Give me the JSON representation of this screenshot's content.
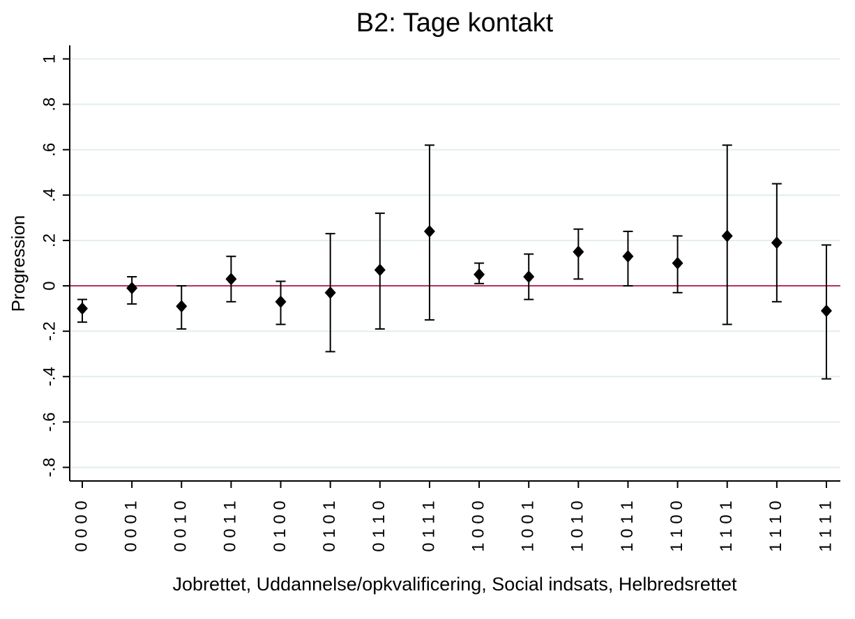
{
  "chart_data": {
    "type": "errorbar",
    "title": "B2: Tage kontakt",
    "ylabel": "Progression",
    "xlabel": "Jobrettet, Uddannelse/opkvalificering, Social indsats, Helbredsrettet",
    "categories": [
      "0 0 0 0",
      "0 0 0 1",
      "0 0 1 0",
      "0 0 1 1",
      "0 1 0 0",
      "0 1 0 1",
      "0 1 1 0",
      "0 1 1 1",
      "1 0 0 0",
      "1 0 0 1",
      "1 0 1 0",
      "1 0 1 1",
      "1 1 0 0",
      "1 1 0 1",
      "1 1 1 0",
      "1 1 1 1"
    ],
    "series": [
      {
        "color": "#000000",
        "values": [
          -0.1,
          -0.01,
          -0.09,
          0.03,
          -0.07,
          -0.03,
          0.07,
          0.24,
          0.05,
          0.04,
          0.15,
          0.13,
          0.1,
          0.22,
          0.19,
          -0.11
        ],
        "lower": [
          -0.16,
          -0.08,
          -0.19,
          -0.07,
          -0.17,
          -0.29,
          -0.19,
          -0.15,
          0.01,
          -0.06,
          0.03,
          0.0,
          -0.03,
          -0.17,
          -0.07,
          -0.41
        ],
        "upper": [
          -0.06,
          0.04,
          0.0,
          0.13,
          0.02,
          0.23,
          0.32,
          0.62,
          0.1,
          0.14,
          0.25,
          0.24,
          0.22,
          0.62,
          0.45,
          0.18
        ]
      }
    ],
    "ylim": [
      -0.86,
      1.06
    ],
    "yticks": [
      1,
      {
        "value": 0.8,
        "label": ".8"
      },
      {
        "value": 0.6,
        "label": ".6"
      },
      {
        "value": 0.4,
        "label": ".4"
      },
      {
        "value": 0.2,
        "label": ".2"
      },
      0,
      {
        "value": -0.2,
        "label": "-.2"
      },
      {
        "value": -0.4,
        "label": "-.4"
      },
      {
        "value": -0.6,
        "label": "-.6"
      },
      {
        "value": -0.8,
        "label": "-.8"
      }
    ],
    "grid": true,
    "grid_color": "#e3eeee",
    "refline": {
      "value": 0,
      "color": "#b8305a"
    },
    "title_color": "#1e3a5f"
  }
}
